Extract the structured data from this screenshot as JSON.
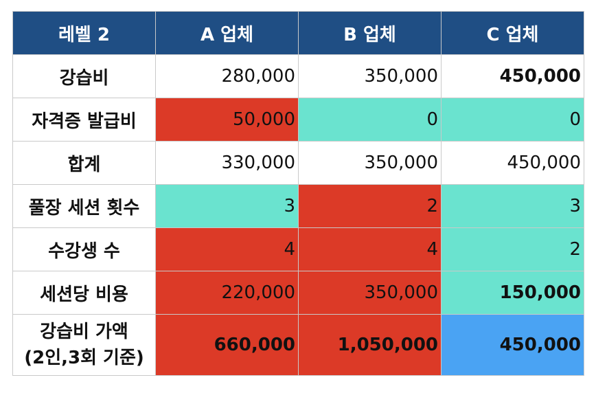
{
  "header": [
    "레벨 2",
    "A 업체",
    "B 업체",
    "C 업체"
  ],
  "rows": [
    {
      "label": "강습비",
      "cells": [
        {
          "value": "280,000",
          "bg": "white",
          "bold": false
        },
        {
          "value": "350,000",
          "bg": "white",
          "bold": false
        },
        {
          "value": "450,000",
          "bg": "white",
          "bold": true
        }
      ]
    },
    {
      "label": "자격증 발급비",
      "cells": [
        {
          "value": "50,000",
          "bg": "red",
          "bold": false
        },
        {
          "value": "0",
          "bg": "teal",
          "bold": false
        },
        {
          "value": "0",
          "bg": "teal",
          "bold": false
        }
      ]
    },
    {
      "label": "합계",
      "cells": [
        {
          "value": "330,000",
          "bg": "white",
          "bold": false
        },
        {
          "value": "350,000",
          "bg": "white",
          "bold": false
        },
        {
          "value": "450,000",
          "bg": "white",
          "bold": false
        }
      ]
    },
    {
      "label": "풀장 세션 횟수",
      "cells": [
        {
          "value": "3",
          "bg": "teal",
          "bold": false
        },
        {
          "value": "2",
          "bg": "red",
          "bold": false
        },
        {
          "value": "3",
          "bg": "teal",
          "bold": false
        }
      ]
    },
    {
      "label": "수강생 수",
      "cells": [
        {
          "value": "4",
          "bg": "red",
          "bold": false
        },
        {
          "value": "4",
          "bg": "red",
          "bold": false
        },
        {
          "value": "2",
          "bg": "teal",
          "bold": false
        }
      ]
    },
    {
      "label": "세션당 비용",
      "cells": [
        {
          "value": "220,000",
          "bg": "red",
          "bold": false
        },
        {
          "value": "350,000",
          "bg": "red",
          "bold": false
        },
        {
          "value": "150,000",
          "bg": "teal",
          "bold": true
        }
      ]
    }
  ],
  "total_row": {
    "label_line1": "강습비 가액",
    "label_line2": "(2인,3회 기준)",
    "cells": [
      {
        "value": "660,000",
        "bg": "red",
        "bold": true
      },
      {
        "value": "1,050,000",
        "bg": "red",
        "bold": true
      },
      {
        "value": "450,000",
        "bg": "blue",
        "bold": true
      }
    ]
  },
  "colors": {
    "header_bg": "#1f4e84",
    "red": "#dc3a27",
    "teal": "#6ae3cf",
    "blue": "#4aa3f3"
  }
}
